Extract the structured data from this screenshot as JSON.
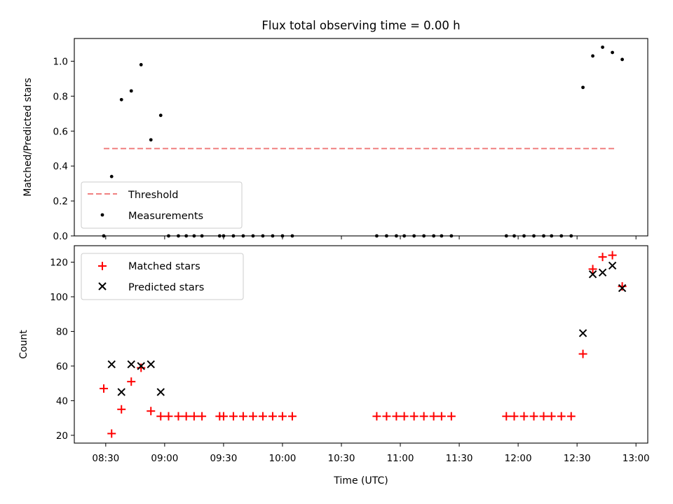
{
  "chart_data": [
    {
      "type": "scatter",
      "title": "Flux total observing time = 0.00 h",
      "xlabel": "",
      "ylabel": "Matched/Predicted stars",
      "ylim": [
        0.0,
        1.13
      ],
      "yticks": [
        0.0,
        0.2,
        0.4,
        0.6,
        0.8,
        1.0
      ],
      "ytick_labels": [
        "0.0",
        "0.2",
        "0.4",
        "0.6",
        "0.8",
        "1.0"
      ],
      "legend_position": "lower-left",
      "threshold": {
        "name": "Threshold",
        "y": 0.5,
        "x_range": [
          "08:29",
          "12:49"
        ],
        "color": "#f08080",
        "style": "dashed"
      },
      "series": [
        {
          "name": "Measurements",
          "color": "#000000",
          "marker": "dot",
          "points": [
            [
              "08:29",
              0.0
            ],
            [
              "08:33",
              0.34
            ],
            [
              "08:38",
              0.78
            ],
            [
              "08:43",
              0.83
            ],
            [
              "08:48",
              0.98
            ],
            [
              "08:53",
              0.55
            ],
            [
              "08:58",
              0.69
            ],
            [
              "09:02",
              0.0
            ],
            [
              "09:07",
              0.0
            ],
            [
              "09:11",
              0.0
            ],
            [
              "09:15",
              0.0
            ],
            [
              "09:19",
              0.0
            ],
            [
              "09:28",
              0.0
            ],
            [
              "09:30",
              0.0
            ],
            [
              "09:35",
              0.0
            ],
            [
              "09:40",
              0.0
            ],
            [
              "09:45",
              0.0
            ],
            [
              "09:50",
              0.0
            ],
            [
              "09:55",
              0.0
            ],
            [
              "10:00",
              0.0
            ],
            [
              "10:05",
              0.0
            ],
            [
              "10:48",
              0.0
            ],
            [
              "10:53",
              0.0
            ],
            [
              "10:58",
              0.0
            ],
            [
              "11:02",
              0.0
            ],
            [
              "11:07",
              0.0
            ],
            [
              "11:12",
              0.0
            ],
            [
              "11:17",
              0.0
            ],
            [
              "11:21",
              0.0
            ],
            [
              "11:26",
              0.0
            ],
            [
              "11:54",
              0.0
            ],
            [
              "11:58",
              0.0
            ],
            [
              "12:03",
              0.0
            ],
            [
              "12:08",
              0.0
            ],
            [
              "12:13",
              0.0
            ],
            [
              "12:17",
              0.0
            ],
            [
              "12:22",
              0.0
            ],
            [
              "12:27",
              0.0
            ],
            [
              "12:33",
              0.85
            ],
            [
              "12:38",
              1.03
            ],
            [
              "12:43",
              1.08
            ],
            [
              "12:48",
              1.05
            ],
            [
              "12:53",
              1.01
            ]
          ]
        }
      ]
    },
    {
      "type": "scatter",
      "title": "",
      "xlabel": "Time (UTC)",
      "ylabel": "Count",
      "ylim": [
        15.5,
        129.5
      ],
      "yticks": [
        20,
        40,
        60,
        80,
        100,
        120
      ],
      "ytick_labels": [
        "20",
        "40",
        "60",
        "80",
        "100",
        "120"
      ],
      "xlim": [
        "08:14",
        "13:06"
      ],
      "xticks": [
        "08:30",
        "09:00",
        "09:30",
        "10:00",
        "10:30",
        "11:00",
        "11:30",
        "12:00",
        "12:30",
        "13:00"
      ],
      "xtick_labels": [
        "08:30",
        "09:00",
        "09:30",
        "10:00",
        "10:30",
        "11:00",
        "11:30",
        "12:00",
        "12:30",
        "13:00"
      ],
      "legend_position": "upper-left",
      "series": [
        {
          "name": "Matched stars",
          "color": "#ff0000",
          "marker": "plus",
          "points": [
            [
              "08:29",
              47
            ],
            [
              "08:33",
              21
            ],
            [
              "08:38",
              35
            ],
            [
              "08:43",
              51
            ],
            [
              "08:48",
              59
            ],
            [
              "08:53",
              34
            ],
            [
              "08:58",
              31
            ],
            [
              "09:02",
              31
            ],
            [
              "09:07",
              31
            ],
            [
              "09:11",
              31
            ],
            [
              "09:15",
              31
            ],
            [
              "09:19",
              31
            ],
            [
              "09:28",
              31
            ],
            [
              "09:30",
              31
            ],
            [
              "09:35",
              31
            ],
            [
              "09:40",
              31
            ],
            [
              "09:45",
              31
            ],
            [
              "09:50",
              31
            ],
            [
              "09:55",
              31
            ],
            [
              "10:00",
              31
            ],
            [
              "10:05",
              31
            ],
            [
              "10:48",
              31
            ],
            [
              "10:53",
              31
            ],
            [
              "10:58",
              31
            ],
            [
              "11:02",
              31
            ],
            [
              "11:07",
              31
            ],
            [
              "11:12",
              31
            ],
            [
              "11:17",
              31
            ],
            [
              "11:21",
              31
            ],
            [
              "11:26",
              31
            ],
            [
              "11:54",
              31
            ],
            [
              "11:58",
              31
            ],
            [
              "12:03",
              31
            ],
            [
              "12:08",
              31
            ],
            [
              "12:13",
              31
            ],
            [
              "12:17",
              31
            ],
            [
              "12:22",
              31
            ],
            [
              "12:27",
              31
            ],
            [
              "12:33",
              67
            ],
            [
              "12:38",
              116
            ],
            [
              "12:43",
              123
            ],
            [
              "12:48",
              124
            ],
            [
              "12:53",
              106
            ]
          ]
        },
        {
          "name": "Predicted stars",
          "color": "#000000",
          "marker": "x",
          "points": [
            [
              "08:33",
              61
            ],
            [
              "08:38",
              45
            ],
            [
              "08:43",
              61
            ],
            [
              "08:48",
              60
            ],
            [
              "08:53",
              61
            ],
            [
              "08:58",
              45
            ],
            [
              "12:33",
              79
            ],
            [
              "12:38",
              113
            ],
            [
              "12:43",
              114
            ],
            [
              "12:48",
              118
            ],
            [
              "12:53",
              105
            ]
          ]
        }
      ]
    }
  ]
}
